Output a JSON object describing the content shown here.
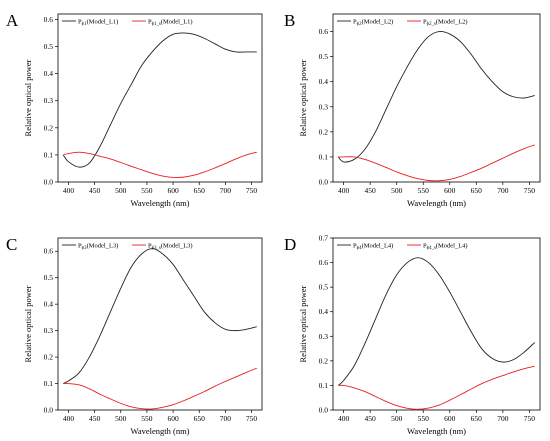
{
  "chart_data": [
    {
      "type": "line",
      "panel_label": "A",
      "xlabel": "Wavelength (nm)",
      "ylabel": "Relative optical power",
      "xlim": [
        380,
        770
      ],
      "ylim": [
        0,
        0.62
      ],
      "xticks": [
        400,
        450,
        500,
        550,
        600,
        650,
        700,
        750
      ],
      "yticks": [
        0.0,
        0.1,
        0.2,
        0.3,
        0.4,
        0.5,
        0.6
      ],
      "grid": false,
      "legend_position": "top-left",
      "series": [
        {
          "name": "P_ϕ1(Model_L1)",
          "legend_main": "P",
          "legend_sub": "ϕ1",
          "legend_rest": "(Model_L1)",
          "color": "#222222",
          "x": [
            390,
            400,
            420,
            440,
            460,
            480,
            500,
            520,
            540,
            560,
            580,
            600,
            620,
            640,
            660,
            680,
            700,
            720,
            740,
            760
          ],
          "y": [
            0.1,
            0.075,
            0.055,
            0.07,
            0.13,
            0.21,
            0.29,
            0.36,
            0.43,
            0.48,
            0.52,
            0.545,
            0.55,
            0.545,
            0.53,
            0.51,
            0.49,
            0.48,
            0.48,
            0.48
          ]
        },
        {
          "name": "P_ϕ1_s(Model_L1)",
          "legend_main": "P",
          "legend_sub": "ϕ1_s",
          "legend_rest": "(Model_L1)",
          "color": "#e8201f",
          "x": [
            390,
            400,
            420,
            440,
            460,
            480,
            500,
            520,
            540,
            560,
            580,
            600,
            620,
            640,
            660,
            680,
            700,
            720,
            740,
            760
          ],
          "y": [
            0.1,
            0.105,
            0.11,
            0.105,
            0.095,
            0.085,
            0.072,
            0.058,
            0.045,
            0.032,
            0.022,
            0.017,
            0.018,
            0.025,
            0.037,
            0.052,
            0.068,
            0.085,
            0.1,
            0.11
          ]
        }
      ]
    },
    {
      "type": "line",
      "panel_label": "B",
      "xlabel": "Wavelength (nm)",
      "ylabel": "Relative optical power",
      "xlim": [
        380,
        770
      ],
      "ylim": [
        0,
        0.67
      ],
      "xticks": [
        400,
        450,
        500,
        550,
        600,
        650,
        700,
        750
      ],
      "yticks": [
        0.0,
        0.1,
        0.2,
        0.3,
        0.4,
        0.5,
        0.6
      ],
      "grid": false,
      "legend_position": "top-left",
      "series": [
        {
          "name": "P_ϕ2(Model_L2)",
          "legend_main": "P",
          "legend_sub": "ϕ2",
          "legend_rest": "(Model_L2)",
          "color": "#222222",
          "x": [
            390,
            400,
            420,
            440,
            460,
            480,
            500,
            520,
            540,
            560,
            580,
            600,
            620,
            640,
            660,
            680,
            700,
            720,
            740,
            760
          ],
          "y": [
            0.1,
            0.08,
            0.09,
            0.13,
            0.2,
            0.29,
            0.38,
            0.46,
            0.53,
            0.58,
            0.6,
            0.59,
            0.56,
            0.51,
            0.45,
            0.4,
            0.36,
            0.34,
            0.335,
            0.345
          ]
        },
        {
          "name": "P_ϕ2_s(Model_L2)",
          "legend_main": "P",
          "legend_sub": "ϕ2_s",
          "legend_rest": "(Model_L2)",
          "color": "#e8201f",
          "x": [
            390,
            400,
            420,
            440,
            460,
            480,
            500,
            520,
            540,
            560,
            580,
            600,
            620,
            640,
            660,
            680,
            700,
            720,
            740,
            760
          ],
          "y": [
            0.1,
            0.1,
            0.1,
            0.09,
            0.075,
            0.058,
            0.04,
            0.025,
            0.013,
            0.006,
            0.005,
            0.01,
            0.022,
            0.038,
            0.055,
            0.075,
            0.095,
            0.115,
            0.133,
            0.148
          ]
        }
      ]
    },
    {
      "type": "line",
      "panel_label": "C",
      "xlabel": "Wavelength (nm)",
      "ylabel": "Relative optical power",
      "xlim": [
        380,
        770
      ],
      "ylim": [
        0,
        0.65
      ],
      "xticks": [
        400,
        450,
        500,
        550,
        600,
        650,
        700,
        750
      ],
      "yticks": [
        0.0,
        0.1,
        0.2,
        0.3,
        0.4,
        0.5,
        0.6
      ],
      "grid": false,
      "legend_position": "top-left",
      "series": [
        {
          "name": "P_ϕ3(Model_L3)",
          "legend_main": "P",
          "legend_sub": "ϕ3",
          "legend_rest": "(Model_L3)",
          "color": "#222222",
          "x": [
            390,
            400,
            420,
            440,
            460,
            480,
            500,
            520,
            540,
            560,
            580,
            600,
            620,
            640,
            660,
            680,
            700,
            720,
            740,
            760
          ],
          "y": [
            0.1,
            0.11,
            0.14,
            0.2,
            0.28,
            0.37,
            0.46,
            0.54,
            0.59,
            0.61,
            0.59,
            0.55,
            0.49,
            0.43,
            0.37,
            0.33,
            0.305,
            0.3,
            0.305,
            0.315
          ]
        },
        {
          "name": "P_ϕ3_s(Model_L3)",
          "legend_main": "P",
          "legend_sub": "ϕ3_s",
          "legend_rest": "(Model_L3)",
          "color": "#e8201f",
          "x": [
            390,
            400,
            420,
            440,
            460,
            480,
            500,
            520,
            540,
            560,
            580,
            600,
            620,
            640,
            660,
            680,
            700,
            720,
            740,
            760
          ],
          "y": [
            0.1,
            0.1,
            0.095,
            0.08,
            0.06,
            0.042,
            0.025,
            0.012,
            0.005,
            0.004,
            0.01,
            0.02,
            0.035,
            0.052,
            0.07,
            0.09,
            0.108,
            0.125,
            0.142,
            0.158
          ]
        }
      ]
    },
    {
      "type": "line",
      "panel_label": "D",
      "xlabel": "Wavelength (nm)",
      "ylabel": "Relative optical power",
      "xlim": [
        380,
        770
      ],
      "ylim": [
        0,
        0.7
      ],
      "xticks": [
        400,
        450,
        500,
        550,
        600,
        650,
        700,
        750
      ],
      "yticks": [
        0.0,
        0.1,
        0.2,
        0.3,
        0.4,
        0.5,
        0.6,
        0.7
      ],
      "grid": false,
      "legend_position": "top-left",
      "series": [
        {
          "name": "P_ϕ4(Model_L4)",
          "legend_main": "P",
          "legend_sub": "ϕ4",
          "legend_rest": "(Model_L4)",
          "color": "#222222",
          "x": [
            390,
            400,
            420,
            440,
            460,
            480,
            500,
            520,
            540,
            560,
            580,
            600,
            620,
            640,
            660,
            680,
            700,
            720,
            740,
            760
          ],
          "y": [
            0.1,
            0.12,
            0.18,
            0.27,
            0.37,
            0.47,
            0.55,
            0.6,
            0.62,
            0.6,
            0.55,
            0.48,
            0.4,
            0.32,
            0.25,
            0.21,
            0.195,
            0.205,
            0.235,
            0.275
          ]
        },
        {
          "name": "P_ϕ4_s(Model_L4)",
          "legend_main": "P",
          "legend_sub": "ϕ4_s",
          "legend_rest": "(Model_L4)",
          "color": "#e8201f",
          "x": [
            390,
            400,
            420,
            440,
            460,
            480,
            500,
            520,
            540,
            560,
            580,
            600,
            620,
            640,
            660,
            680,
            700,
            720,
            740,
            760
          ],
          "y": [
            0.1,
            0.1,
            0.09,
            0.075,
            0.055,
            0.035,
            0.018,
            0.007,
            0.003,
            0.008,
            0.02,
            0.04,
            0.062,
            0.085,
            0.107,
            0.125,
            0.14,
            0.155,
            0.168,
            0.178
          ]
        }
      ]
    }
  ]
}
